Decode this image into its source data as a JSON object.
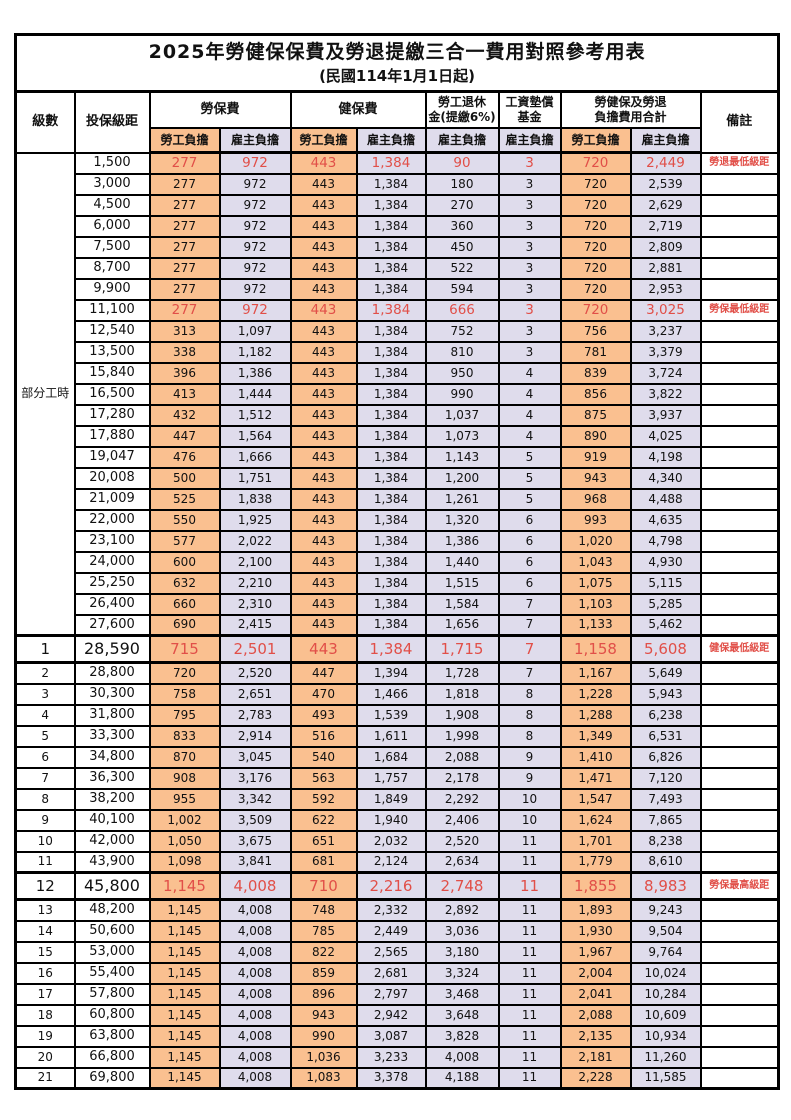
{
  "title": "2025年勞健保保費及勞退提繳三合一費用對照參考用表",
  "subtitle": "(民國114年1月1日起)",
  "columns": {
    "level": "級數",
    "salary": "投保級距",
    "labor": "勞保費",
    "health": "健保費",
    "pension": [
      "勞工退休",
      "金(提繳6%)"
    ],
    "wage_fund": [
      "工資墊償",
      "基金"
    ],
    "total": [
      "勞健保及勞退",
      "負擔費用合計"
    ],
    "note": "備註",
    "employee_share": "勞工負擔",
    "employer_share": "雇主負擔"
  },
  "part_time_label": "部分工時",
  "colors": {
    "employee_bg": "#FAC090",
    "employer_bg": "#DFDCEC",
    "highlight_text": "#E14F48",
    "border": "#000000"
  },
  "rows": [
    {
      "salary": "1,500",
      "li_emp": "277",
      "li_er": "972",
      "hi_emp": "443",
      "hi_er": "1,384",
      "pension": "90",
      "fund": "3",
      "sum_emp": "720",
      "sum_er": "2,449",
      "note": "勞退最低級距",
      "hl": true
    },
    {
      "salary": "3,000",
      "li_emp": "277",
      "li_er": "972",
      "hi_emp": "443",
      "hi_er": "1,384",
      "pension": "180",
      "fund": "3",
      "sum_emp": "720",
      "sum_er": "2,539"
    },
    {
      "salary": "4,500",
      "li_emp": "277",
      "li_er": "972",
      "hi_emp": "443",
      "hi_er": "1,384",
      "pension": "270",
      "fund": "3",
      "sum_emp": "720",
      "sum_er": "2,629"
    },
    {
      "salary": "6,000",
      "li_emp": "277",
      "li_er": "972",
      "hi_emp": "443",
      "hi_er": "1,384",
      "pension": "360",
      "fund": "3",
      "sum_emp": "720",
      "sum_er": "2,719"
    },
    {
      "salary": "7,500",
      "li_emp": "277",
      "li_er": "972",
      "hi_emp": "443",
      "hi_er": "1,384",
      "pension": "450",
      "fund": "3",
      "sum_emp": "720",
      "sum_er": "2,809"
    },
    {
      "salary": "8,700",
      "li_emp": "277",
      "li_er": "972",
      "hi_emp": "443",
      "hi_er": "1,384",
      "pension": "522",
      "fund": "3",
      "sum_emp": "720",
      "sum_er": "2,881"
    },
    {
      "salary": "9,900",
      "li_emp": "277",
      "li_er": "972",
      "hi_emp": "443",
      "hi_er": "1,384",
      "pension": "594",
      "fund": "3",
      "sum_emp": "720",
      "sum_er": "2,953"
    },
    {
      "salary": "11,100",
      "li_emp": "277",
      "li_er": "972",
      "hi_emp": "443",
      "hi_er": "1,384",
      "pension": "666",
      "fund": "3",
      "sum_emp": "720",
      "sum_er": "3,025",
      "note": "勞保最低級距",
      "hl": true
    },
    {
      "salary": "12,540",
      "li_emp": "313",
      "li_er": "1,097",
      "hi_emp": "443",
      "hi_er": "1,384",
      "pension": "752",
      "fund": "3",
      "sum_emp": "756",
      "sum_er": "3,237"
    },
    {
      "salary": "13,500",
      "li_emp": "338",
      "li_er": "1,182",
      "hi_emp": "443",
      "hi_er": "1,384",
      "pension": "810",
      "fund": "3",
      "sum_emp": "781",
      "sum_er": "3,379"
    },
    {
      "salary": "15,840",
      "li_emp": "396",
      "li_er": "1,386",
      "hi_emp": "443",
      "hi_er": "1,384",
      "pension": "950",
      "fund": "4",
      "sum_emp": "839",
      "sum_er": "3,724"
    },
    {
      "salary": "16,500",
      "li_emp": "413",
      "li_er": "1,444",
      "hi_emp": "443",
      "hi_er": "1,384",
      "pension": "990",
      "fund": "4",
      "sum_emp": "856",
      "sum_er": "3,822"
    },
    {
      "salary": "17,280",
      "li_emp": "432",
      "li_er": "1,512",
      "hi_emp": "443",
      "hi_er": "1,384",
      "pension": "1,037",
      "fund": "4",
      "sum_emp": "875",
      "sum_er": "3,937"
    },
    {
      "salary": "17,880",
      "li_emp": "447",
      "li_er": "1,564",
      "hi_emp": "443",
      "hi_er": "1,384",
      "pension": "1,073",
      "fund": "4",
      "sum_emp": "890",
      "sum_er": "4,025"
    },
    {
      "salary": "19,047",
      "li_emp": "476",
      "li_er": "1,666",
      "hi_emp": "443",
      "hi_er": "1,384",
      "pension": "1,143",
      "fund": "5",
      "sum_emp": "919",
      "sum_er": "4,198"
    },
    {
      "salary": "20,008",
      "li_emp": "500",
      "li_er": "1,751",
      "hi_emp": "443",
      "hi_er": "1,384",
      "pension": "1,200",
      "fund": "5",
      "sum_emp": "943",
      "sum_er": "4,340"
    },
    {
      "salary": "21,009",
      "li_emp": "525",
      "li_er": "1,838",
      "hi_emp": "443",
      "hi_er": "1,384",
      "pension": "1,261",
      "fund": "5",
      "sum_emp": "968",
      "sum_er": "4,488"
    },
    {
      "salary": "22,000",
      "li_emp": "550",
      "li_er": "1,925",
      "hi_emp": "443",
      "hi_er": "1,384",
      "pension": "1,320",
      "fund": "6",
      "sum_emp": "993",
      "sum_er": "4,635"
    },
    {
      "salary": "23,100",
      "li_emp": "577",
      "li_er": "2,022",
      "hi_emp": "443",
      "hi_er": "1,384",
      "pension": "1,386",
      "fund": "6",
      "sum_emp": "1,020",
      "sum_er": "4,798"
    },
    {
      "salary": "24,000",
      "li_emp": "600",
      "li_er": "2,100",
      "hi_emp": "443",
      "hi_er": "1,384",
      "pension": "1,440",
      "fund": "6",
      "sum_emp": "1,043",
      "sum_er": "4,930"
    },
    {
      "salary": "25,250",
      "li_emp": "632",
      "li_er": "2,210",
      "hi_emp": "443",
      "hi_er": "1,384",
      "pension": "1,515",
      "fund": "6",
      "sum_emp": "1,075",
      "sum_er": "5,115"
    },
    {
      "salary": "26,400",
      "li_emp": "660",
      "li_er": "2,310",
      "hi_emp": "443",
      "hi_er": "1,384",
      "pension": "1,584",
      "fund": "7",
      "sum_emp": "1,103",
      "sum_er": "5,285"
    },
    {
      "salary": "27,600",
      "li_emp": "690",
      "li_er": "2,415",
      "hi_emp": "443",
      "hi_er": "1,384",
      "pension": "1,656",
      "fund": "7",
      "sum_emp": "1,133",
      "sum_er": "5,462"
    },
    {
      "level": "1",
      "salary": "28,590",
      "li_emp": "715",
      "li_er": "2,501",
      "hi_emp": "443",
      "hi_er": "1,384",
      "pension": "1,715",
      "fund": "7",
      "sum_emp": "1,158",
      "sum_er": "5,608",
      "note": "健保最低級距",
      "hl": true,
      "big": true
    },
    {
      "level": "2",
      "salary": "28,800",
      "li_emp": "720",
      "li_er": "2,520",
      "hi_emp": "447",
      "hi_er": "1,394",
      "pension": "1,728",
      "fund": "7",
      "sum_emp": "1,167",
      "sum_er": "5,649"
    },
    {
      "level": "3",
      "salary": "30,300",
      "li_emp": "758",
      "li_er": "2,651",
      "hi_emp": "470",
      "hi_er": "1,466",
      "pension": "1,818",
      "fund": "8",
      "sum_emp": "1,228",
      "sum_er": "5,943"
    },
    {
      "level": "4",
      "salary": "31,800",
      "li_emp": "795",
      "li_er": "2,783",
      "hi_emp": "493",
      "hi_er": "1,539",
      "pension": "1,908",
      "fund": "8",
      "sum_emp": "1,288",
      "sum_er": "6,238"
    },
    {
      "level": "5",
      "salary": "33,300",
      "li_emp": "833",
      "li_er": "2,914",
      "hi_emp": "516",
      "hi_er": "1,611",
      "pension": "1,998",
      "fund": "8",
      "sum_emp": "1,349",
      "sum_er": "6,531"
    },
    {
      "level": "6",
      "salary": "34,800",
      "li_emp": "870",
      "li_er": "3,045",
      "hi_emp": "540",
      "hi_er": "1,684",
      "pension": "2,088",
      "fund": "9",
      "sum_emp": "1,410",
      "sum_er": "6,826"
    },
    {
      "level": "7",
      "salary": "36,300",
      "li_emp": "908",
      "li_er": "3,176",
      "hi_emp": "563",
      "hi_er": "1,757",
      "pension": "2,178",
      "fund": "9",
      "sum_emp": "1,471",
      "sum_er": "7,120"
    },
    {
      "level": "8",
      "salary": "38,200",
      "li_emp": "955",
      "li_er": "3,342",
      "hi_emp": "592",
      "hi_er": "1,849",
      "pension": "2,292",
      "fund": "10",
      "sum_emp": "1,547",
      "sum_er": "7,493"
    },
    {
      "level": "9",
      "salary": "40,100",
      "li_emp": "1,002",
      "li_er": "3,509",
      "hi_emp": "622",
      "hi_er": "1,940",
      "pension": "2,406",
      "fund": "10",
      "sum_emp": "1,624",
      "sum_er": "7,865"
    },
    {
      "level": "10",
      "salary": "42,000",
      "li_emp": "1,050",
      "li_er": "3,675",
      "hi_emp": "651",
      "hi_er": "2,032",
      "pension": "2,520",
      "fund": "11",
      "sum_emp": "1,701",
      "sum_er": "8,238"
    },
    {
      "level": "11",
      "salary": "43,900",
      "li_emp": "1,098",
      "li_er": "3,841",
      "hi_emp": "681",
      "hi_er": "2,124",
      "pension": "2,634",
      "fund": "11",
      "sum_emp": "1,779",
      "sum_er": "8,610"
    },
    {
      "level": "12",
      "salary": "45,800",
      "li_emp": "1,145",
      "li_er": "4,008",
      "hi_emp": "710",
      "hi_er": "2,216",
      "pension": "2,748",
      "fund": "11",
      "sum_emp": "1,855",
      "sum_er": "8,983",
      "note": "勞保最高級距",
      "hl": true,
      "big": true
    },
    {
      "level": "13",
      "salary": "48,200",
      "li_emp": "1,145",
      "li_er": "4,008",
      "hi_emp": "748",
      "hi_er": "2,332",
      "pension": "2,892",
      "fund": "11",
      "sum_emp": "1,893",
      "sum_er": "9,243"
    },
    {
      "level": "14",
      "salary": "50,600",
      "li_emp": "1,145",
      "li_er": "4,008",
      "hi_emp": "785",
      "hi_er": "2,449",
      "pension": "3,036",
      "fund": "11",
      "sum_emp": "1,930",
      "sum_er": "9,504"
    },
    {
      "level": "15",
      "salary": "53,000",
      "li_emp": "1,145",
      "li_er": "4,008",
      "hi_emp": "822",
      "hi_er": "2,565",
      "pension": "3,180",
      "fund": "11",
      "sum_emp": "1,967",
      "sum_er": "9,764"
    },
    {
      "level": "16",
      "salary": "55,400",
      "li_emp": "1,145",
      "li_er": "4,008",
      "hi_emp": "859",
      "hi_er": "2,681",
      "pension": "3,324",
      "fund": "11",
      "sum_emp": "2,004",
      "sum_er": "10,024"
    },
    {
      "level": "17",
      "salary": "57,800",
      "li_emp": "1,145",
      "li_er": "4,008",
      "hi_emp": "896",
      "hi_er": "2,797",
      "pension": "3,468",
      "fund": "11",
      "sum_emp": "2,041",
      "sum_er": "10,284"
    },
    {
      "level": "18",
      "salary": "60,800",
      "li_emp": "1,145",
      "li_er": "4,008",
      "hi_emp": "943",
      "hi_er": "2,942",
      "pension": "3,648",
      "fund": "11",
      "sum_emp": "2,088",
      "sum_er": "10,609"
    },
    {
      "level": "19",
      "salary": "63,800",
      "li_emp": "1,145",
      "li_er": "4,008",
      "hi_emp": "990",
      "hi_er": "3,087",
      "pension": "3,828",
      "fund": "11",
      "sum_emp": "2,135",
      "sum_er": "10,934"
    },
    {
      "level": "20",
      "salary": "66,800",
      "li_emp": "1,145",
      "li_er": "4,008",
      "hi_emp": "1,036",
      "hi_er": "3,233",
      "pension": "4,008",
      "fund": "11",
      "sum_emp": "2,181",
      "sum_er": "11,260"
    },
    {
      "level": "21",
      "salary": "69,800",
      "li_emp": "1,145",
      "li_er": "4,008",
      "hi_emp": "1,083",
      "hi_er": "3,378",
      "pension": "4,188",
      "fund": "11",
      "sum_emp": "2,228",
      "sum_er": "11,585"
    }
  ]
}
